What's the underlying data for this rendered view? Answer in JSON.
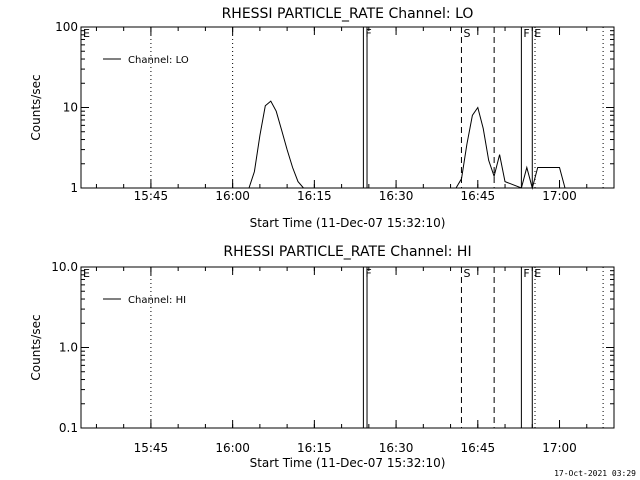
{
  "footer_timestamp": "17-Oct-2021 03:29",
  "chart_data": [
    {
      "type": "line",
      "title": "RHESSI PARTICLE_RATE Channel: LO",
      "xlabel": "Start Time (11-Dec-07 15:32:10)",
      "ylabel": "Counts/sec",
      "yscale": "log",
      "ylim": [
        1,
        100
      ],
      "xlim": [
        "15:32:10",
        "17:10:00"
      ],
      "x_ticks": [
        "15:45",
        "16:00",
        "16:15",
        "16:30",
        "16:45",
        "17:00"
      ],
      "y_ticks": [
        "1",
        "10",
        "100"
      ],
      "legend": "top-left",
      "legend_label": "Channel: LO",
      "series": [
        {
          "name": "Channel: LO",
          "x": [
            "16:03",
            "16:04",
            "16:05",
            "16:06",
            "16:07",
            "16:08",
            "16:09",
            "16:10",
            "16:11",
            "16:12",
            "16:13",
            "16:41",
            "16:42",
            "16:43",
            "16:44",
            "16:45",
            "16:46",
            "16:47",
            "16:48",
            "16:49",
            "16:50",
            "16:53",
            "16:54",
            "16:55",
            "16:56",
            "16:57",
            "16:58",
            "16:59",
            "17:00",
            "17:01"
          ],
          "values": [
            1.0,
            1.6,
            4.5,
            10.5,
            12.0,
            9.0,
            5.2,
            3.0,
            1.8,
            1.2,
            1.0,
            1.0,
            1.3,
            3.5,
            8.0,
            10.0,
            5.5,
            2.2,
            1.4,
            2.6,
            1.2,
            1.0,
            1.8,
            1.0,
            1.8,
            1.8,
            1.8,
            1.8,
            1.8,
            1.0
          ]
        }
      ],
      "markers": [
        {
          "time": "15:45",
          "style": "dotted",
          "label": ""
        },
        {
          "time": "16:00",
          "style": "dotted",
          "label": ""
        },
        {
          "time": "15:32:10",
          "style": "none",
          "label": "E"
        },
        {
          "time": "16:24",
          "style": "solid",
          "label": "F"
        },
        {
          "time": "16:24:40",
          "style": "solid",
          "label": ""
        },
        {
          "time": "16:42",
          "style": "dashed",
          "label": "S"
        },
        {
          "time": "16:48",
          "style": "dashed",
          "label": ""
        },
        {
          "time": "16:53",
          "style": "solid",
          "label": "F"
        },
        {
          "time": "16:55",
          "style": "solid",
          "label": "E"
        },
        {
          "time": "16:55:30",
          "style": "dotted",
          "label": ""
        },
        {
          "time": "17:08",
          "style": "dotted",
          "label": ""
        }
      ]
    },
    {
      "type": "line",
      "title": "RHESSI PARTICLE_RATE Channel: HI",
      "xlabel": "Start Time (11-Dec-07 15:32:10)",
      "ylabel": "Counts/sec",
      "yscale": "log",
      "ylim": [
        0.1,
        10
      ],
      "xlim": [
        "15:32:10",
        "17:10:00"
      ],
      "x_ticks": [
        "15:45",
        "16:00",
        "16:15",
        "16:30",
        "16:45",
        "17:00"
      ],
      "y_ticks": [
        "0.1",
        "1.0",
        "10.0"
      ],
      "legend": "top-left",
      "legend_label": "Channel: HI",
      "series": [
        {
          "name": "Channel: HI",
          "x": [],
          "values": []
        }
      ],
      "markers": [
        {
          "time": "15:45",
          "style": "dotted",
          "label": ""
        },
        {
          "time": "15:32:10",
          "style": "none",
          "label": "E"
        },
        {
          "time": "16:24",
          "style": "solid",
          "label": "F"
        },
        {
          "time": "16:24:40",
          "style": "solid",
          "label": ""
        },
        {
          "time": "16:42",
          "style": "dashed",
          "label": "S"
        },
        {
          "time": "16:48",
          "style": "dashed",
          "label": ""
        },
        {
          "time": "16:53",
          "style": "solid",
          "label": "F"
        },
        {
          "time": "16:55",
          "style": "solid",
          "label": "E"
        },
        {
          "time": "16:55:30",
          "style": "dotted",
          "label": ""
        },
        {
          "time": "17:08",
          "style": "dotted",
          "label": ""
        }
      ]
    }
  ]
}
